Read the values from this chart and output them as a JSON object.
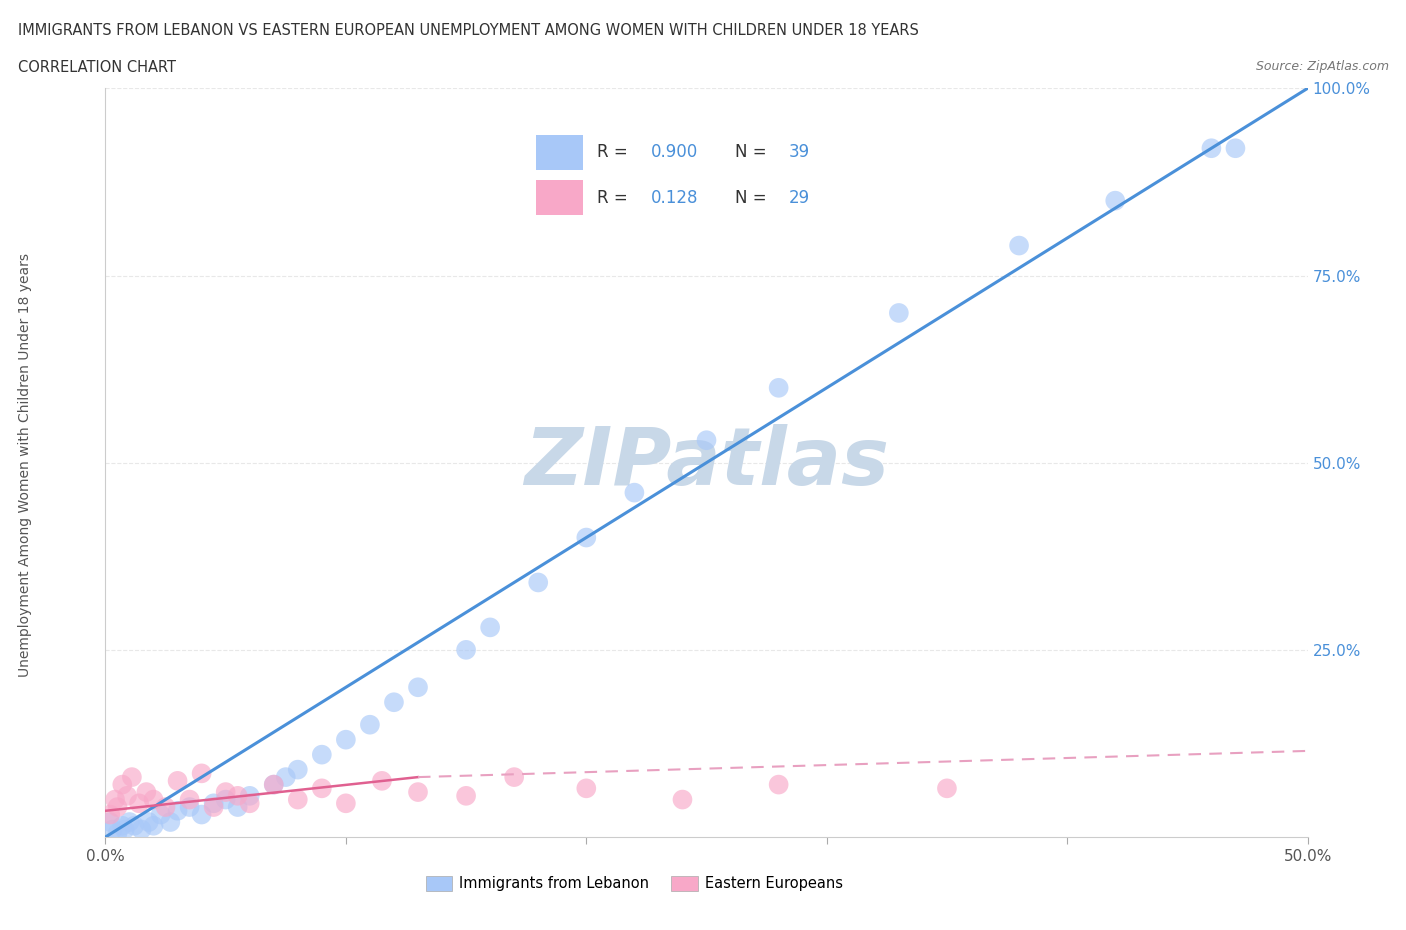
{
  "title": "IMMIGRANTS FROM LEBANON VS EASTERN EUROPEAN UNEMPLOYMENT AMONG WOMEN WITH CHILDREN UNDER 18 YEARS",
  "subtitle": "CORRELATION CHART",
  "source": "Source: ZipAtlas.com",
  "ylabel_label": "Unemployment Among Women with Children Under 18 years",
  "watermark": "ZIPatlas",
  "lebanon_r": 0.9,
  "lebanon_n": 39,
  "eastern_r": 0.128,
  "eastern_n": 29,
  "lebanon_x": [
    0.2,
    0.3,
    0.5,
    0.7,
    0.8,
    1.0,
    1.2,
    1.5,
    1.8,
    2.0,
    2.3,
    2.7,
    3.0,
    3.5,
    4.0,
    4.5,
    5.0,
    5.5,
    6.0,
    7.0,
    7.5,
    8.0,
    9.0,
    10.0,
    11.0,
    12.0,
    13.0,
    15.0,
    16.0,
    18.0,
    20.0,
    22.0,
    25.0,
    28.0,
    33.0,
    38.0,
    42.0,
    46.0,
    47.0
  ],
  "lebanon_y": [
    2.0,
    1.0,
    0.5,
    1.5,
    1.0,
    2.0,
    1.5,
    1.0,
    2.0,
    1.5,
    3.0,
    2.0,
    3.5,
    4.0,
    3.0,
    4.5,
    5.0,
    4.0,
    5.5,
    7.0,
    8.0,
    9.0,
    11.0,
    13.0,
    15.0,
    18.0,
    20.0,
    25.0,
    28.0,
    34.0,
    40.0,
    46.0,
    53.0,
    60.0,
    70.0,
    79.0,
    85.0,
    92.0,
    92.0
  ],
  "eastern_x": [
    0.2,
    0.4,
    0.5,
    0.7,
    0.9,
    1.1,
    1.4,
    1.7,
    2.0,
    2.5,
    3.0,
    3.5,
    4.0,
    4.5,
    5.0,
    5.5,
    6.0,
    7.0,
    8.0,
    9.0,
    10.0,
    11.5,
    13.0,
    15.0,
    17.0,
    20.0,
    24.0,
    28.0,
    35.0
  ],
  "eastern_y": [
    3.0,
    5.0,
    4.0,
    7.0,
    5.5,
    8.0,
    4.5,
    6.0,
    5.0,
    4.0,
    7.5,
    5.0,
    8.5,
    4.0,
    6.0,
    5.5,
    4.5,
    7.0,
    5.0,
    6.5,
    4.5,
    7.5,
    6.0,
    5.5,
    8.0,
    6.5,
    5.0,
    7.0,
    6.5
  ],
  "lebanon_color": "#a8c8f8",
  "eastern_color": "#f8a8c8",
  "lebanon_line_color": "#4a90d9",
  "eastern_solid_color": "#e06090",
  "eastern_dash_color": "#e8a0c0",
  "grid_color": "#e8e8e8",
  "bg_color": "#ffffff",
  "watermark_color": "#c8d8e8",
  "tick_color": "#4a90d9",
  "text_color": "#333333",
  "xlim": [
    0,
    50
  ],
  "ylim": [
    0,
    100
  ],
  "yticks": [
    0,
    25,
    50,
    75,
    100
  ],
  "ytick_labels": [
    "",
    "25.0%",
    "50.0%",
    "75.0%",
    "100.0%"
  ]
}
